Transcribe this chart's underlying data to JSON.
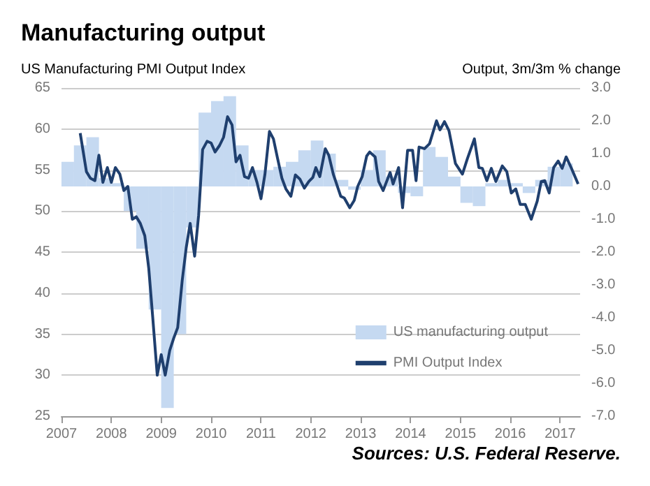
{
  "chart_data": {
    "type": "line",
    "title": "Manufacturing output",
    "ylabel": "US Manufacturing PMI Output Index",
    "y2label": "Output, 3m/3m % change",
    "annotations": [
      "Sources: U.S. Federal Reserve."
    ],
    "xlim": [
      2007,
      2017.4
    ],
    "xticks": [
      2007,
      2008,
      2009,
      2010,
      2011,
      2012,
      2013,
      2014,
      2015,
      2016,
      2017
    ],
    "ylim": [
      25,
      65
    ],
    "yticks": [
      25,
      30,
      35,
      40,
      45,
      50,
      55,
      60,
      65
    ],
    "y2lim": [
      -7,
      3
    ],
    "y2ticks": [
      {
        "value": -7,
        "label": "-7.0"
      },
      {
        "value": -6,
        "label": "-6.0"
      },
      {
        "value": -5,
        "label": "-5.0"
      },
      {
        "value": -4,
        "label": "-4.0"
      },
      {
        "value": -3,
        "label": "-3.0"
      },
      {
        "value": -2,
        "label": "-2.0"
      },
      {
        "value": -1,
        "label": "-1.0"
      },
      {
        "value": 0,
        "label": "0.0"
      },
      {
        "value": 1,
        "label": "1.0"
      },
      {
        "value": 2,
        "label": "2.0"
      },
      {
        "value": 3,
        "label": "3.0"
      }
    ],
    "grid": "y",
    "legend": "bottom right",
    "marker": "none",
    "line_style": "solid",
    "series": [
      {
        "name": "US manufacturing output",
        "type": "bar",
        "axis": "y2",
        "color": "#c5d9f1",
        "x": [
          2007.125,
          2007.375,
          2007.625,
          2007.875,
          2008.125,
          2008.375,
          2008.625,
          2008.875,
          2009.125,
          2009.375,
          2009.625,
          2009.875,
          2010.125,
          2010.375,
          2010.625,
          2010.875,
          2011.125,
          2011.375,
          2011.625,
          2011.875,
          2012.125,
          2012.375,
          2012.625,
          2012.875,
          2013.125,
          2013.375,
          2013.625,
          2013.875,
          2014.125,
          2014.375,
          2014.625,
          2014.875,
          2015.125,
          2015.375,
          2015.625,
          2015.875,
          2016.125,
          2016.375,
          2016.625,
          2016.875,
          2017.125
        ],
        "values": [
          0.75,
          1.25,
          1.5,
          0.25,
          0.1,
          -0.75,
          -1.9,
          -3.75,
          -6.75,
          -4.5,
          -1.25,
          2.25,
          2.6,
          2.75,
          1.25,
          0.5,
          0.5,
          0.6,
          0.75,
          1.1,
          1.4,
          1.0,
          0.2,
          -0.1,
          0.5,
          1.1,
          0.3,
          -0.2,
          -0.3,
          1.2,
          0.9,
          0.3,
          -0.5,
          -0.6,
          0.1,
          0.2,
          0.1,
          -0.2,
          0.2,
          0.6,
          0.7
        ]
      },
      {
        "name": "PMI Output Index",
        "color": "#1f3f6e",
        "x": [
          2007.375,
          2007.5,
          2007.58,
          2007.67,
          2007.75,
          2007.83,
          2007.92,
          2008.0,
          2008.08,
          2008.17,
          2008.25,
          2008.33,
          2008.42,
          2008.5,
          2008.58,
          2008.67,
          2008.75,
          2008.83,
          2008.92,
          2009.0,
          2009.08,
          2009.17,
          2009.25,
          2009.33,
          2009.42,
          2009.5,
          2009.58,
          2009.67,
          2009.75,
          2009.83,
          2009.92,
          2010.0,
          2010.08,
          2010.17,
          2010.25,
          2010.33,
          2010.42,
          2010.5,
          2010.58,
          2010.67,
          2010.75,
          2010.83,
          2010.92,
          2011.0,
          2011.08,
          2011.17,
          2011.25,
          2011.33,
          2011.42,
          2011.5,
          2011.6,
          2011.69,
          2011.78,
          2011.87,
          2011.96,
          2012.04,
          2012.1,
          2012.18,
          2012.29,
          2012.36,
          2012.45,
          2012.6,
          2012.67,
          2012.78,
          2012.87,
          2012.94,
          2013.03,
          2013.12,
          2013.18,
          2013.29,
          2013.36,
          2013.45,
          2013.59,
          2013.65,
          2013.76,
          2013.84,
          2013.94,
          2014.04,
          2014.11,
          2014.17,
          2014.28,
          2014.38,
          2014.52,
          2014.59,
          2014.68,
          2014.77,
          2014.9,
          2015.04,
          2015.14,
          2015.28,
          2015.37,
          2015.44,
          2015.53,
          2015.62,
          2015.71,
          2015.84,
          2015.93,
          2016.02,
          2016.11,
          2016.2,
          2016.3,
          2016.42,
          2016.54,
          2016.62,
          2016.69,
          2016.78,
          2016.87,
          2016.96,
          2017.04,
          2017.12,
          2017.22,
          2017.36
        ],
        "values": [
          59.5,
          54.8,
          54,
          53.7,
          56.8,
          53.5,
          55.3,
          53.5,
          55.3,
          54.5,
          52.5,
          53,
          49,
          49.3,
          48.5,
          47,
          43,
          37,
          30,
          32.5,
          30,
          33,
          34.5,
          35.8,
          41.5,
          45.5,
          48.5,
          44.5,
          49.5,
          57.5,
          58.5,
          58.3,
          57.2,
          58,
          59,
          61.5,
          60.5,
          56,
          56.8,
          54.2,
          54,
          55.3,
          53.5,
          51.5,
          54.5,
          59.7,
          58.8,
          56.5,
          54,
          52.7,
          51.8,
          54.4,
          53.9,
          52.8,
          53.6,
          54.1,
          55.3,
          54.2,
          57.6,
          56.8,
          54.5,
          51.8,
          51.6,
          50.4,
          51.3,
          53,
          54.2,
          56.7,
          57.2,
          56.6,
          53.6,
          52.5,
          54.7,
          53.3,
          55.3,
          50.4,
          57.4,
          57.4,
          53.7,
          57.8,
          57.6,
          58.2,
          61,
          59.9,
          60.9,
          59.8,
          55.8,
          54.5,
          56.4,
          58.8,
          55.3,
          55.2,
          53.7,
          55.2,
          53.6,
          55.5,
          54.8,
          52.2,
          52.7,
          50.8,
          50.8,
          49,
          51.2,
          53.6,
          53.7,
          52.2,
          55.3,
          56.1,
          55.2,
          56.6,
          55.3,
          53.3
        ]
      }
    ]
  }
}
